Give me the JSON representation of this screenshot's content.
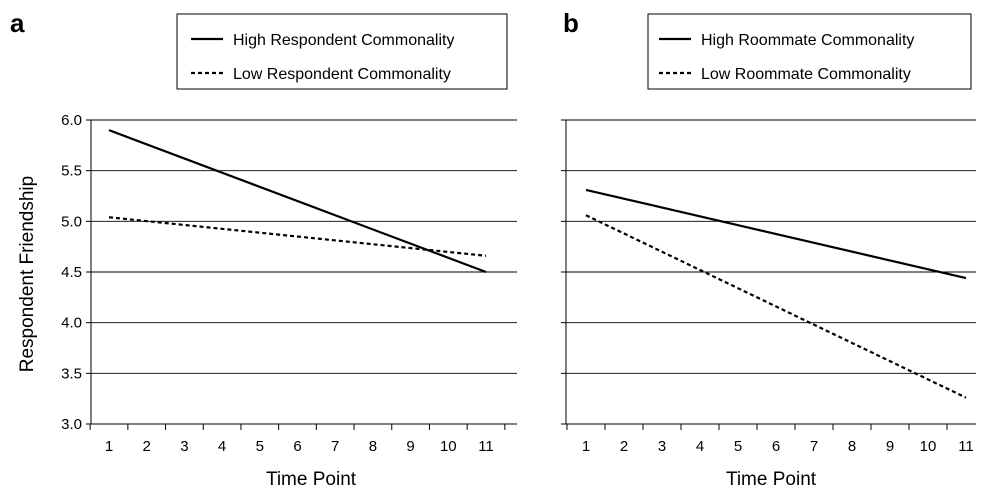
{
  "chart_data": [
    {
      "type": "line",
      "panel_label": "a",
      "xlabel": "Time Point",
      "ylabel": "Respondent Friendship",
      "x": [
        1,
        2,
        3,
        4,
        5,
        6,
        7,
        8,
        9,
        10,
        11
      ],
      "x_tick_labels": [
        "1",
        "2",
        "3",
        "4",
        "5",
        "6",
        "7",
        "8",
        "9",
        "10",
        "11"
      ],
      "y_tick_labels": [
        "6.0",
        "5.5",
        "5.0",
        "4.5",
        "4.0",
        "3.5",
        "3.0"
      ],
      "ylim": [
        3.0,
        6.0
      ],
      "grid": "horizontal",
      "legend_position": "top",
      "series": [
        {
          "name": "High Respondent Commonality",
          "style": "solid",
          "x": [
            1,
            11
          ],
          "y": [
            5.9,
            4.5
          ]
        },
        {
          "name": "Low Respondent Commonality",
          "style": "dashed",
          "x": [
            1,
            11
          ],
          "y": [
            5.04,
            4.66
          ]
        }
      ]
    },
    {
      "type": "line",
      "panel_label": "b",
      "xlabel": "Time Point",
      "ylabel": "",
      "x": [
        1,
        2,
        3,
        4,
        5,
        6,
        7,
        8,
        9,
        10,
        11
      ],
      "x_tick_labels": [
        "1",
        "2",
        "3",
        "4",
        "5",
        "6",
        "7",
        "8",
        "9",
        "10",
        "11"
      ],
      "ylim": [
        3.0,
        6.0
      ],
      "grid": "horizontal",
      "legend_position": "top",
      "series": [
        {
          "name": "High Roommate Commonality",
          "style": "solid",
          "x": [
            1,
            11
          ],
          "y": [
            5.31,
            4.44
          ]
        },
        {
          "name": "Low Roommate Commonality",
          "style": "dashed",
          "x": [
            1,
            11
          ],
          "y": [
            5.06,
            3.26
          ]
        }
      ]
    }
  ]
}
